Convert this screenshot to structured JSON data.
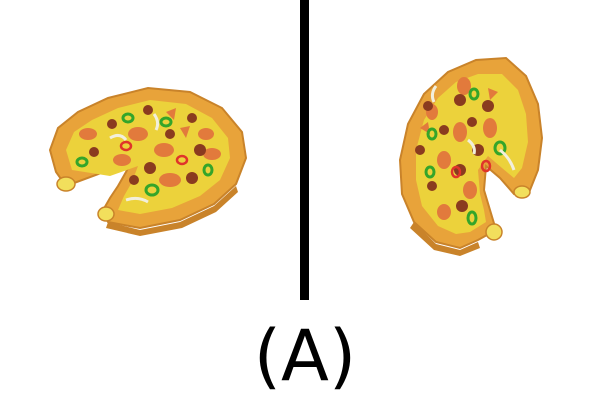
{
  "caption": "(A)",
  "colors": {
    "background": "#ffffff",
    "divider": "#000000",
    "crust": "#e8a33a",
    "crust_dark": "#c9832a",
    "cheese": "#ecd23b",
    "cheese_light": "#f2df5c",
    "pepperoni": "#e27a3c",
    "sausage": "#8a3b1f",
    "pepper_green": "#34a52a",
    "pepper_red": "#e0342a",
    "onion": "#f2efdc"
  },
  "panels": [
    {
      "name": "left-pizza",
      "missing_slice": "front-left"
    },
    {
      "name": "right-pizza",
      "missing_slice": "bottom-right"
    }
  ]
}
